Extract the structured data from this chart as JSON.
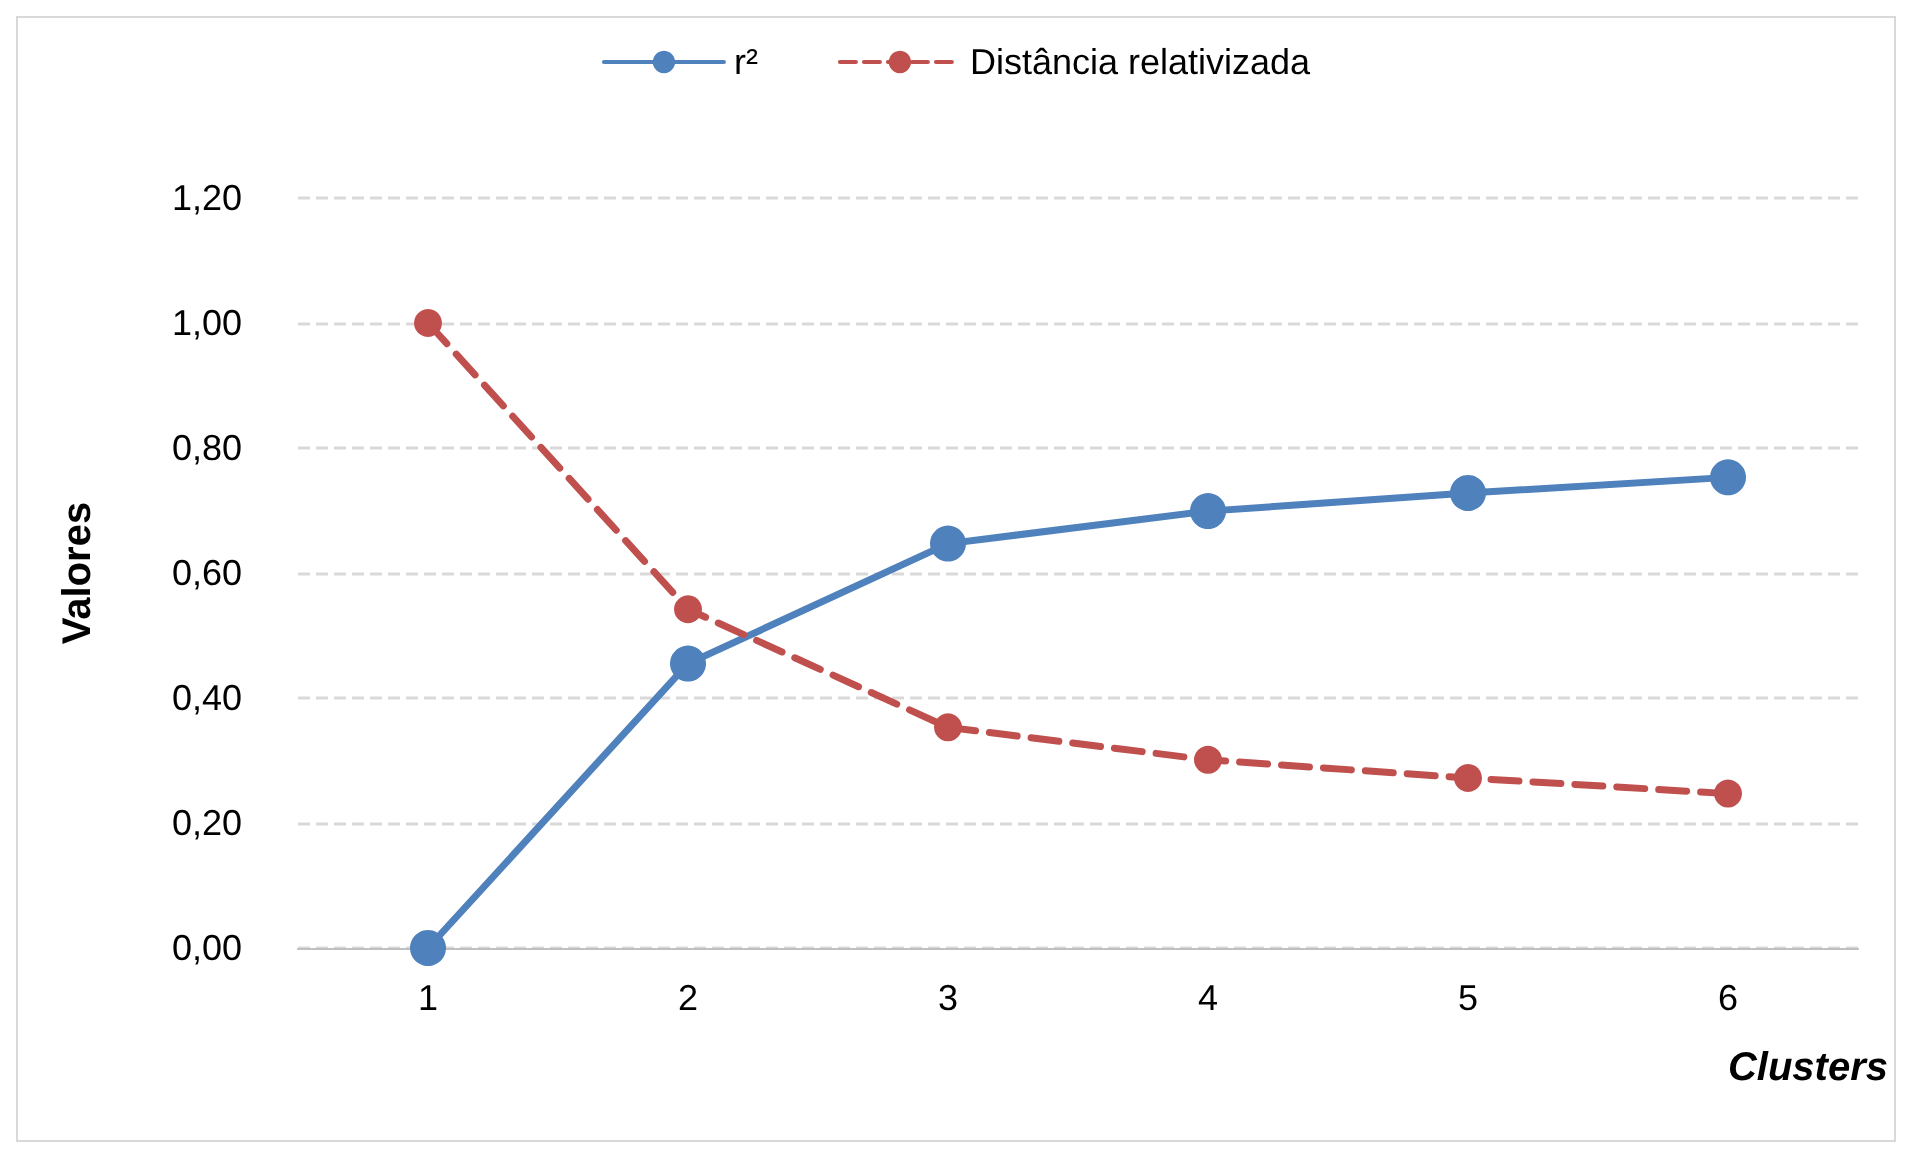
{
  "chart_data": {
    "type": "line",
    "ylabel": "Valores",
    "xlabel": "Clusters",
    "categories": [
      "1",
      "2",
      "3",
      "4",
      "5",
      "6"
    ],
    "series": [
      {
        "name": "r²",
        "color": "#4f81bd",
        "values": [
          0,
          0.455,
          0.647,
          0.699,
          0.728,
          0.753
        ],
        "line_style": "solid"
      },
      {
        "name": "Distância relativizada",
        "color": "#c0504d",
        "values": [
          1.0,
          0.542,
          0.353,
          0.301,
          0.272,
          0.247
        ],
        "line_style": "dashed"
      }
    ],
    "ylim": [
      0,
      1.2
    ],
    "yticks": [
      {
        "value": 0,
        "label": "0,00"
      },
      {
        "value": 0.2,
        "label": "0,20"
      },
      {
        "value": 0.4,
        "label": "0,40"
      },
      {
        "value": 0.6,
        "label": "0,60"
      },
      {
        "value": 0.8,
        "label": "0,80"
      },
      {
        "value": 1.0,
        "label": "1,00"
      },
      {
        "value": 1.2,
        "label": "1,20"
      }
    ],
    "grid": "y",
    "legend": "top",
    "marker": "circle"
  }
}
